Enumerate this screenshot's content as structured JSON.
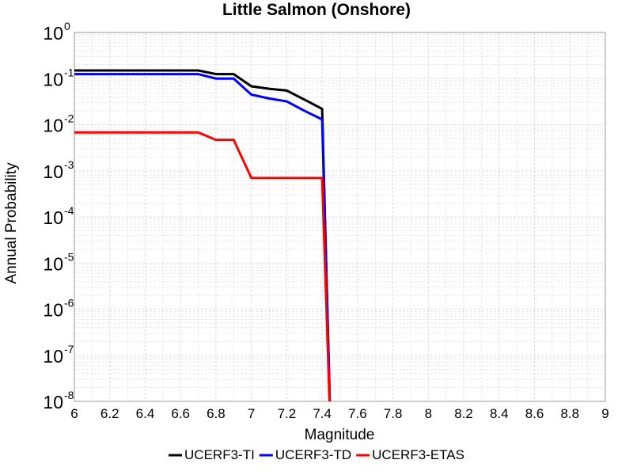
{
  "chart_data": {
    "type": "line",
    "title": "Little Salmon (Onshore)",
    "xlabel": "Magnitude",
    "ylabel": "Annual Probability",
    "xlim": [
      6,
      9
    ],
    "ylim": [
      1e-08,
      1
    ],
    "y_scale": "log",
    "grid": true,
    "legend_position": "bottom",
    "x_ticks": [
      "6",
      "6.2",
      "6.4",
      "6.6",
      "6.8",
      "7",
      "7.2",
      "7.4",
      "7.6",
      "7.8",
      "8",
      "8.2",
      "8.4",
      "8.6",
      "8.8",
      "9"
    ],
    "y_ticks": [
      {
        "base": "10",
        "exp": "-8"
      },
      {
        "base": "10",
        "exp": "-7"
      },
      {
        "base": "10",
        "exp": "-6"
      },
      {
        "base": "10",
        "exp": "-5"
      },
      {
        "base": "10",
        "exp": "-4"
      },
      {
        "base": "10",
        "exp": "-3"
      },
      {
        "base": "10",
        "exp": "-2"
      },
      {
        "base": "10",
        "exp": "-1"
      },
      {
        "base": "10",
        "exp": "0"
      }
    ],
    "series": [
      {
        "name": "UCERF3-TI",
        "color": "#000000",
        "x": [
          6.0,
          6.1,
          6.2,
          6.3,
          6.4,
          6.5,
          6.6,
          6.7,
          6.8,
          6.9,
          7.0,
          7.1,
          7.2,
          7.3,
          7.4,
          7.45
        ],
        "y": [
          0.15,
          0.15,
          0.15,
          0.15,
          0.15,
          0.15,
          0.15,
          0.15,
          0.125,
          0.125,
          0.068,
          0.06,
          0.055,
          0.035,
          0.022,
          1e-09
        ]
      },
      {
        "name": "UCERF3-TD",
        "color": "#0000ff",
        "x": [
          6.0,
          6.1,
          6.2,
          6.3,
          6.4,
          6.5,
          6.6,
          6.7,
          6.8,
          6.9,
          7.0,
          7.1,
          7.2,
          7.3,
          7.4,
          7.45
        ],
        "y": [
          0.125,
          0.125,
          0.125,
          0.125,
          0.125,
          0.125,
          0.125,
          0.125,
          0.1,
          0.1,
          0.045,
          0.037,
          0.032,
          0.02,
          0.013,
          1e-09
        ]
      },
      {
        "name": "UCERF3-ETAS",
        "color": "#ff0000",
        "x": [
          6.0,
          6.1,
          6.2,
          6.3,
          6.4,
          6.5,
          6.6,
          6.7,
          6.8,
          6.9,
          7.0,
          7.1,
          7.2,
          7.3,
          7.4,
          7.45
        ],
        "y": [
          0.0068,
          0.0068,
          0.0068,
          0.0068,
          0.0068,
          0.0068,
          0.0068,
          0.0068,
          0.0047,
          0.0047,
          0.0007,
          0.0007,
          0.0007,
          0.0007,
          0.0007,
          1e-09
        ]
      }
    ]
  }
}
